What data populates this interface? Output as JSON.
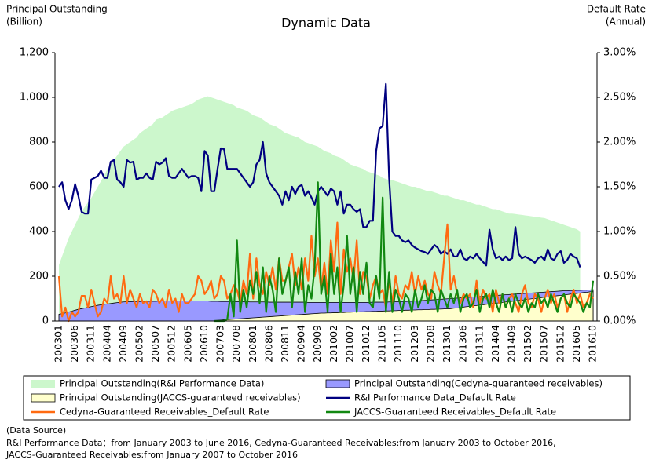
{
  "chart_data": {
    "type": "combo",
    "title": "Dynamic Data",
    "ylabel": [
      "Principal Outstanding",
      "(Billion)"
    ],
    "y2label": [
      "Default Rate",
      "(Annual)"
    ],
    "source": [
      "(Data Source)",
      "R&I Performance Data：from January 2003 to June 2016, Cedyna-Guaranteed Receivables:from January 2003 to October 2016,",
      "JACCS-Guaranteed Receivables:from January 2007 to October 2016"
    ],
    "categories": [
      "200301",
      null,
      null,
      null,
      null,
      "200306",
      null,
      null,
      null,
      null,
      "200311",
      null,
      null,
      null,
      null,
      "200404",
      null,
      null,
      null,
      null,
      "200409",
      null,
      null,
      null,
      null,
      "200502",
      null,
      null,
      null,
      null,
      "200507",
      null,
      null,
      null,
      null,
      "200512",
      null,
      null,
      null,
      null,
      "200605",
      null,
      null,
      null,
      null,
      "200610",
      null,
      null,
      null,
      null,
      "200703",
      null,
      null,
      null,
      null,
      "200708",
      null,
      null,
      null,
      null,
      "200801",
      null,
      null,
      null,
      null,
      "200806",
      null,
      null,
      null,
      null,
      "200811",
      null,
      null,
      null,
      null,
      "200904",
      null,
      null,
      null,
      null,
      "200909",
      null,
      null,
      null,
      null,
      "201002",
      null,
      null,
      null,
      null,
      "201007",
      null,
      null,
      null,
      null,
      "201012",
      null,
      null,
      null,
      null,
      "201105",
      null,
      null,
      null,
      null,
      "201110",
      null,
      null,
      null,
      null,
      "201203",
      null,
      null,
      null,
      null,
      "201208",
      null,
      null,
      null,
      null,
      "201301",
      null,
      null,
      null,
      null,
      "201306",
      null,
      null,
      null,
      null,
      "201311",
      null,
      null,
      null,
      null,
      "201404",
      null,
      null,
      null,
      null,
      "201409",
      null,
      null,
      null,
      null,
      "201502",
      null,
      null,
      null,
      null,
      "201507",
      null,
      null,
      null,
      null,
      "201512",
      null,
      null,
      null,
      null,
      "201605",
      null,
      null,
      null,
      null,
      "201610"
    ],
    "ylim": [
      0,
      1200
    ],
    "yticks": [
      0,
      200,
      400,
      600,
      800,
      {
        "value": 1000,
        "label": "1,000"
      },
      {
        "value": 1200,
        "label": "1,200"
      }
    ],
    "y2lim": [
      0,
      3
    ],
    "y2ticks": [
      {
        "value": 0,
        "label": "0.00%"
      },
      {
        "value": 0.5,
        "label": "0.50%"
      },
      {
        "value": 1,
        "label": "1.00%"
      },
      {
        "value": 1.5,
        "label": "1.50%"
      },
      {
        "value": 2,
        "label": "2.00%"
      },
      {
        "value": 2.5,
        "label": "2.50%"
      },
      {
        "value": 3,
        "label": "3.00%"
      }
    ],
    "series": [
      {
        "name": "Principal Outstanding(R&I Performance Data)",
        "type": "area",
        "color": "#ccf7cc",
        "values": [
          250,
          290,
          330,
          370,
          400,
          430,
          460,
          490,
          510,
          530,
          550,
          575,
          600,
          625,
          650,
          680,
          700,
          720,
          740,
          760,
          780,
          790,
          800,
          810,
          820,
          840,
          850,
          860,
          870,
          880,
          900,
          905,
          910,
          920,
          930,
          940,
          945,
          950,
          955,
          960,
          965,
          970,
          980,
          990,
          995,
          1000,
          1005,
          1000,
          995,
          990,
          985,
          980,
          975,
          970,
          965,
          955,
          950,
          945,
          940,
          930,
          920,
          915,
          910,
          900,
          890,
          880,
          875,
          870,
          860,
          850,
          840,
          835,
          830,
          825,
          820,
          810,
          800,
          795,
          790,
          785,
          780,
          770,
          760,
          755,
          750,
          740,
          735,
          730,
          720,
          710,
          700,
          695,
          690,
          685,
          680,
          670,
          665,
          660,
          655,
          650,
          640,
          635,
          630,
          630,
          625,
          620,
          615,
          610,
          605,
          600,
          600,
          595,
          590,
          585,
          580,
          580,
          575,
          570,
          565,
          560,
          560,
          555,
          550,
          545,
          540,
          540,
          535,
          530,
          525,
          520,
          520,
          515,
          510,
          505,
          500,
          500,
          495,
          490,
          485,
          480,
          480,
          478,
          476,
          474,
          472,
          470,
          468,
          466,
          464,
          462,
          460,
          455,
          450,
          445,
          440,
          435,
          430,
          425,
          420,
          415,
          410,
          400,
          null,
          null,
          null,
          null
        ]
      },
      {
        "name": "Principal Outstanding(Cedyna-guaranteed receivables)",
        "type": "area",
        "color": "#9999ff",
        "values": [
          30,
          33,
          36,
          40,
          44,
          48,
          52,
          55,
          58,
          61,
          64,
          67,
          70,
          72,
          74,
          76,
          78,
          80,
          82,
          84,
          85,
          86,
          86,
          87,
          87,
          87,
          88,
          88,
          88,
          88,
          88,
          89,
          89,
          89,
          89,
          89,
          89,
          89,
          89,
          89,
          89,
          89,
          89,
          89,
          89,
          89,
          89,
          88,
          88,
          88,
          87,
          87,
          87,
          87,
          86,
          86,
          86,
          86,
          86,
          85,
          85,
          85,
          85,
          85,
          85,
          84,
          84,
          84,
          84,
          84,
          84,
          84,
          84,
          84,
          84,
          84,
          84,
          83,
          83,
          83,
          83,
          83,
          83,
          83,
          83,
          83,
          83,
          83,
          83,
          83,
          83,
          83,
          83,
          83,
          83,
          83,
          83,
          84,
          84,
          84,
          84,
          84,
          85,
          85,
          86,
          86,
          87,
          87,
          88,
          88,
          89,
          90,
          91,
          92,
          93,
          94,
          95,
          96,
          97,
          98,
          99,
          100,
          101,
          102,
          103,
          104,
          105,
          106,
          107,
          108,
          109,
          110,
          111,
          112,
          113,
          114,
          115,
          116,
          117,
          118,
          119,
          120,
          121,
          122,
          123,
          124,
          125,
          126,
          127,
          128,
          129,
          130,
          131,
          132,
          133,
          134,
          135,
          135,
          136,
          136,
          137,
          137,
          138,
          138,
          139,
          140
        ]
      },
      {
        "name": "Principal Outstanding(JACCS-guaranteed receivables)",
        "type": "area",
        "color": "#ffffcc",
        "values": [
          null,
          null,
          null,
          null,
          null,
          null,
          null,
          null,
          null,
          null,
          null,
          null,
          null,
          null,
          null,
          null,
          null,
          null,
          null,
          null,
          null,
          null,
          null,
          null,
          null,
          null,
          null,
          null,
          null,
          null,
          null,
          null,
          null,
          null,
          null,
          null,
          null,
          null,
          null,
          null,
          null,
          null,
          null,
          null,
          null,
          null,
          null,
          null,
          2,
          3,
          4,
          5,
          6,
          7,
          8,
          9,
          10,
          11,
          12,
          13,
          14,
          15,
          16,
          17,
          18,
          19,
          20,
          21,
          22,
          23,
          24,
          25,
          26,
          27,
          28,
          29,
          30,
          31,
          32,
          33,
          34,
          35,
          35,
          36,
          36,
          37,
          37,
          38,
          38,
          39,
          39,
          40,
          40,
          41,
          41,
          42,
          42,
          43,
          43,
          44,
          44,
          45,
          45,
          46,
          46,
          47,
          47,
          48,
          48,
          49,
          49,
          50,
          50,
          51,
          51,
          52,
          52,
          53,
          53,
          54,
          54,
          55,
          57,
          58,
          60,
          62,
          64,
          65,
          67,
          69,
          71,
          72,
          74,
          76,
          78,
          79,
          81,
          83,
          85,
          86,
          88,
          90,
          92,
          93,
          95,
          97,
          99,
          100,
          102,
          104,
          106,
          107,
          109,
          111,
          113,
          114,
          116,
          118,
          120,
          121,
          123,
          125,
          127,
          128,
          130,
          132
        ]
      },
      {
        "name": "R&I Performance Data_Default Rate",
        "type": "line",
        "axis": "y2",
        "color": "#000080",
        "values": [
          1.5,
          1.55,
          1.35,
          1.25,
          1.35,
          1.53,
          1.4,
          1.22,
          1.2,
          1.2,
          1.58,
          1.6,
          1.62,
          1.68,
          1.6,
          1.6,
          1.78,
          1.8,
          1.58,
          1.55,
          1.5,
          1.8,
          1.77,
          1.78,
          1.58,
          1.6,
          1.6,
          1.65,
          1.6,
          1.58,
          1.78,
          1.75,
          1.77,
          1.82,
          1.62,
          1.6,
          1.6,
          1.65,
          1.7,
          1.65,
          1.6,
          1.62,
          1.62,
          1.6,
          1.45,
          1.9,
          1.85,
          1.45,
          1.45,
          1.7,
          1.93,
          1.92,
          1.7,
          1.7,
          1.7,
          1.7,
          1.65,
          1.6,
          1.55,
          1.5,
          1.55,
          1.75,
          1.8,
          2.0,
          1.65,
          1.55,
          1.5,
          1.45,
          1.4,
          1.3,
          1.45,
          1.35,
          1.5,
          1.42,
          1.5,
          1.52,
          1.4,
          1.45,
          1.38,
          1.3,
          1.45,
          1.5,
          1.45,
          1.4,
          1.48,
          1.45,
          1.3,
          1.45,
          1.2,
          1.3,
          1.3,
          1.25,
          1.22,
          1.25,
          1.05,
          1.05,
          1.12,
          1.12,
          1.9,
          2.15,
          2.18,
          2.65,
          1.6,
          1.0,
          0.95,
          0.95,
          0.9,
          0.88,
          0.9,
          0.85,
          0.82,
          0.8,
          0.78,
          0.77,
          0.75,
          0.8,
          0.85,
          0.82,
          0.75,
          0.78,
          0.75,
          0.8,
          0.72,
          0.72,
          0.8,
          0.7,
          0.68,
          0.72,
          0.7,
          0.75,
          0.7,
          0.66,
          0.62,
          1.02,
          0.8,
          0.7,
          0.72,
          0.68,
          0.72,
          0.68,
          0.7,
          1.05,
          0.75,
          0.7,
          0.72,
          0.7,
          0.68,
          0.65,
          0.7,
          0.72,
          0.68,
          0.8,
          0.7,
          0.68,
          0.75,
          0.78,
          0.65,
          0.68,
          0.75,
          0.72,
          0.7,
          0.6,
          null,
          null,
          null,
          null
        ]
      },
      {
        "name": "Cedyna-Guaranteed Receivables_Default Rate",
        "type": "line",
        "axis": "y2",
        "color": "#ff6a10",
        "values": [
          0.5,
          0.05,
          0.15,
          0.0,
          0.1,
          0.05,
          0.1,
          0.28,
          0.28,
          0.15,
          0.35,
          0.2,
          0.05,
          0.1,
          0.25,
          0.2,
          0.5,
          0.25,
          0.3,
          0.2,
          0.5,
          0.2,
          0.35,
          0.25,
          0.15,
          0.3,
          0.2,
          0.22,
          0.15,
          0.35,
          0.3,
          0.2,
          0.25,
          0.15,
          0.35,
          0.2,
          0.25,
          0.1,
          0.3,
          0.2,
          0.2,
          0.25,
          0.3,
          0.5,
          0.45,
          0.3,
          0.35,
          0.45,
          0.25,
          0.3,
          0.5,
          0.45,
          0.25,
          0.3,
          0.4,
          0.35,
          0.2,
          0.45,
          0.3,
          0.75,
          0.25,
          0.7,
          0.4,
          0.3,
          0.55,
          0.4,
          0.6,
          0.35,
          0.7,
          0.45,
          0.45,
          0.6,
          0.75,
          0.4,
          0.6,
          0.35,
          0.7,
          0.45,
          0.95,
          0.5,
          0.7,
          0.35,
          0.65,
          0.3,
          0.9,
          0.55,
          1.1,
          0.3,
          0.8,
          0.55,
          0.7,
          0.45,
          0.9,
          0.3,
          0.55,
          0.5,
          0.25,
          0.4,
          0.5,
          0.3,
          0.35,
          0.15,
          0.45,
          0.2,
          0.5,
          0.3,
          0.25,
          0.4,
          0.35,
          0.55,
          0.3,
          0.5,
          0.35,
          0.45,
          0.3,
          0.25,
          0.55,
          0.4,
          0.3,
          0.7,
          1.08,
          0.35,
          0.5,
          0.3,
          0.2,
          0.3,
          0.25,
          0.3,
          0.15,
          0.45,
          0.2,
          0.35,
          0.25,
          0.3,
          0.1,
          0.35,
          0.2,
          0.3,
          0.15,
          0.25,
          0.3,
          0.2,
          0.1,
          0.3,
          0.4,
          0.2,
          0.15,
          0.3,
          0.25,
          0.1,
          0.25,
          0.35,
          0.2,
          0.3,
          0.15,
          0.25,
          0.3,
          0.1,
          0.25,
          0.35,
          0.2,
          0.3,
          0.15,
          0.2,
          0.3,
          0.25
        ]
      },
      {
        "name": "JACCS-Guaranteed Receivables_Default Rate",
        "type": "line",
        "axis": "y2",
        "color": "#118811",
        "values": [
          null,
          null,
          null,
          null,
          null,
          null,
          null,
          null,
          null,
          null,
          null,
          null,
          null,
          null,
          null,
          null,
          null,
          null,
          null,
          null,
          null,
          null,
          null,
          null,
          null,
          null,
          null,
          null,
          null,
          null,
          null,
          null,
          null,
          null,
          null,
          null,
          null,
          null,
          null,
          null,
          null,
          null,
          null,
          null,
          null,
          null,
          null,
          null,
          0.0,
          0.0,
          0.0,
          0.0,
          0.02,
          0.3,
          0.05,
          0.9,
          0.1,
          0.35,
          0.15,
          0.45,
          0.3,
          0.55,
          0.2,
          0.6,
          0.1,
          0.5,
          0.35,
          0.1,
          0.7,
          0.3,
          0.45,
          0.6,
          0.15,
          0.55,
          0.3,
          0.7,
          0.1,
          0.4,
          0.25,
          0.6,
          1.55,
          0.3,
          0.5,
          0.1,
          0.75,
          0.3,
          0.6,
          0.1,
          0.4,
          0.95,
          0.3,
          0.6,
          0.1,
          0.55,
          0.3,
          0.65,
          0.2,
          0.15,
          0.5,
          0.25,
          1.38,
          0.1,
          0.55,
          0.1,
          0.35,
          0.25,
          0.1,
          0.3,
          0.25,
          0.1,
          0.35,
          0.15,
          0.25,
          0.4,
          0.2,
          0.35,
          0.3,
          0.1,
          0.35,
          0.25,
          0.15,
          0.3,
          0.2,
          0.35,
          0.1,
          0.25,
          0.3,
          0.15,
          0.2,
          0.35,
          0.1,
          0.25,
          0.3,
          0.15,
          0.35,
          0.2,
          0.1,
          0.3,
          0.15,
          0.25,
          0.1,
          0.3,
          0.2,
          0.15,
          0.25,
          0.1,
          0.2,
          0.15,
          0.3,
          0.2,
          0.25,
          0.15,
          0.3,
          0.2,
          0.1,
          0.25,
          0.3,
          0.2,
          0.15,
          0.3,
          0.25,
          0.2,
          0.1,
          0.2,
          0.15,
          0.45
        ]
      }
    ]
  }
}
